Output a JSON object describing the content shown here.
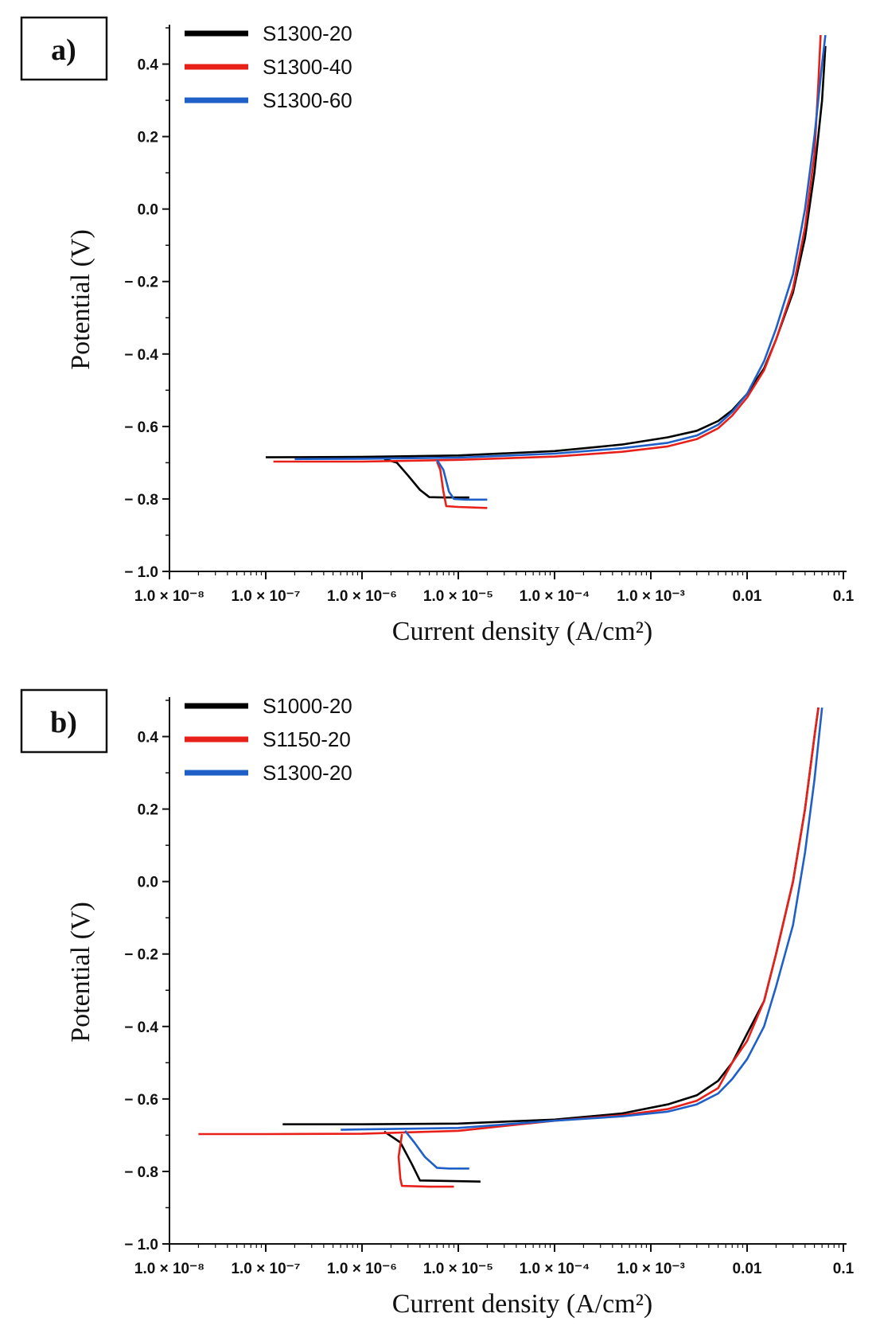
{
  "chart_data": [
    {
      "type": "line",
      "panel_label": "a)",
      "xlabel": "Current density (A/cm²)",
      "ylabel": "Potential (V)",
      "xscale": "log",
      "xlim": [
        1e-08,
        0.1
      ],
      "ylim": [
        -1.0,
        0.5
      ],
      "x_tick_values": [
        1e-08,
        1e-07,
        1e-06,
        1e-05,
        0.0001,
        0.001,
        0.01,
        0.1
      ],
      "x_tick_labels": [
        "1.0 × 10⁻⁸",
        "1.0 × 10⁻⁷",
        "1.0 × 10⁻⁶",
        "1.0 × 10⁻⁵",
        "1.0 × 10⁻⁴",
        "1.0 × 10⁻³",
        "0.01",
        "0.1"
      ],
      "y_tick_values": [
        -1.0,
        -0.8,
        -0.6,
        -0.4,
        -0.2,
        0.0,
        0.2,
        0.4
      ],
      "y_tick_labels": [
        "− 1.0",
        "− 0.8",
        "− 0.6",
        "− 0.4",
        "− 0.2",
        "0.0",
        "0.2",
        "0.4"
      ],
      "legend_position": "top-left",
      "series": [
        {
          "name": "S1300-20",
          "color": "#000000",
          "points": [
            [
              1e-07,
              -0.685
            ],
            [
              1e-06,
              -0.684
            ],
            [
              1e-05,
              -0.68
            ],
            [
              0.0001,
              -0.668
            ],
            [
              0.0005,
              -0.65
            ],
            [
              0.0015,
              -0.63
            ],
            [
              0.003,
              -0.612
            ],
            [
              0.005,
              -0.585
            ],
            [
              0.007,
              -0.555
            ],
            [
              0.01,
              -0.51
            ],
            [
              0.015,
              -0.44
            ],
            [
              0.02,
              -0.36
            ],
            [
              0.03,
              -0.23
            ],
            [
              0.04,
              -0.08
            ],
            [
              0.05,
              0.1
            ],
            [
              0.06,
              0.3
            ],
            [
              0.065,
              0.45
            ]
          ]
        },
        {
          "name": "S1300-20 cathodic",
          "color": "#000000",
          "points": [
            [
              1.7e-06,
              -0.69
            ],
            [
              2.3e-06,
              -0.7
            ],
            [
              3e-06,
              -0.735
            ],
            [
              4e-06,
              -0.775
            ],
            [
              5e-06,
              -0.795
            ],
            [
              7e-06,
              -0.796
            ],
            [
              1.3e-05,
              -0.796
            ]
          ]
        },
        {
          "name": "S1300-40",
          "color": "#e8201a",
          "points": [
            [
              1.2e-07,
              -0.697
            ],
            [
              1e-06,
              -0.697
            ],
            [
              1e-05,
              -0.692
            ],
            [
              0.0001,
              -0.683
            ],
            [
              0.0005,
              -0.67
            ],
            [
              0.0015,
              -0.655
            ],
            [
              0.003,
              -0.635
            ],
            [
              0.005,
              -0.605
            ],
            [
              0.007,
              -0.57
            ],
            [
              0.01,
              -0.52
            ],
            [
              0.015,
              -0.445
            ],
            [
              0.02,
              -0.36
            ],
            [
              0.03,
              -0.22
            ],
            [
              0.04,
              -0.05
            ],
            [
              0.05,
              0.15
            ],
            [
              0.055,
              0.35
            ],
            [
              0.058,
              0.48
            ]
          ]
        },
        {
          "name": "S1300-40 cathodic",
          "color": "#e8201a",
          "points": [
            [
              6e-06,
              -0.697
            ],
            [
              6.5e-06,
              -0.72
            ],
            [
              7e-06,
              -0.78
            ],
            [
              7.5e-06,
              -0.82
            ],
            [
              1e-05,
              -0.822
            ],
            [
              2e-05,
              -0.825
            ]
          ]
        },
        {
          "name": "S1300-60",
          "color": "#1f5fc8",
          "points": [
            [
              2e-07,
              -0.69
            ],
            [
              1e-06,
              -0.689
            ],
            [
              1e-05,
              -0.686
            ],
            [
              0.0001,
              -0.675
            ],
            [
              0.0005,
              -0.66
            ],
            [
              0.0015,
              -0.645
            ],
            [
              0.003,
              -0.625
            ],
            [
              0.005,
              -0.595
            ],
            [
              0.007,
              -0.56
            ],
            [
              0.01,
              -0.51
            ],
            [
              0.015,
              -0.42
            ],
            [
              0.02,
              -0.33
            ],
            [
              0.03,
              -0.18
            ],
            [
              0.04,
              0.0
            ],
            [
              0.05,
              0.2
            ],
            [
              0.06,
              0.4
            ],
            [
              0.065,
              0.48
            ]
          ]
        },
        {
          "name": "S1300-60 cathodic",
          "color": "#1f5fc8",
          "points": [
            [
              6e-06,
              -0.692
            ],
            [
              7e-06,
              -0.72
            ],
            [
              8e-06,
              -0.78
            ],
            [
              9e-06,
              -0.8
            ],
            [
              1.2e-05,
              -0.802
            ],
            [
              2e-05,
              -0.802
            ]
          ]
        }
      ],
      "legend": [
        {
          "name": "S1300-20",
          "color": "#000000"
        },
        {
          "name": "S1300-40",
          "color": "#e8201a"
        },
        {
          "name": "S1300-60",
          "color": "#1f5fc8"
        }
      ]
    },
    {
      "type": "line",
      "panel_label": "b)",
      "xlabel": "Current density (A/cm²)",
      "ylabel": "Potential (V)",
      "xscale": "log",
      "xlim": [
        1e-08,
        0.1
      ],
      "ylim": [
        -1.0,
        0.5
      ],
      "x_tick_values": [
        1e-08,
        1e-07,
        1e-06,
        1e-05,
        0.0001,
        0.001,
        0.01,
        0.1
      ],
      "x_tick_labels": [
        "1.0 × 10⁻⁸",
        "1.0 × 10⁻⁷",
        "1.0 × 10⁻⁶",
        "1.0 × 10⁻⁵",
        "1.0 × 10⁻⁴",
        "1.0 × 10⁻³",
        "0.01",
        "0.1"
      ],
      "y_tick_values": [
        -1.0,
        -0.8,
        -0.6,
        -0.4,
        -0.2,
        0.0,
        0.2,
        0.4
      ],
      "y_tick_labels": [
        "− 1.0",
        "− 0.8",
        "− 0.6",
        "− 0.4",
        "− 0.2",
        "0.0",
        "0.2",
        "0.4"
      ],
      "legend_position": "top-left",
      "series": [
        {
          "name": "S1000-20",
          "color": "#000000",
          "points": [
            [
              1.5e-07,
              -0.67
            ],
            [
              1e-06,
              -0.67
            ],
            [
              1e-05,
              -0.668
            ],
            [
              0.0001,
              -0.657
            ],
            [
              0.0005,
              -0.64
            ],
            [
              0.0015,
              -0.615
            ],
            [
              0.003,
              -0.59
            ],
            [
              0.005,
              -0.55
            ],
            [
              0.007,
              -0.5
            ],
            [
              0.01,
              -0.42
            ],
            [
              0.015,
              -0.33
            ],
            [
              0.02,
              -0.2
            ],
            [
              0.03,
              0.0
            ],
            [
              0.04,
              0.2
            ],
            [
              0.05,
              0.4
            ],
            [
              0.055,
              0.48
            ]
          ]
        },
        {
          "name": "S1000-20 cathodic",
          "color": "#000000",
          "points": [
            [
              1.7e-06,
              -0.69
            ],
            [
              2.5e-06,
              -0.72
            ],
            [
              3.3e-06,
              -0.78
            ],
            [
              4e-06,
              -0.825
            ],
            [
              7e-06,
              -0.826
            ],
            [
              1.7e-05,
              -0.828
            ]
          ]
        },
        {
          "name": "S1150-20",
          "color": "#e8201a",
          "points": [
            [
              2e-08,
              -0.697
            ],
            [
              1e-07,
              -0.697
            ],
            [
              1e-06,
              -0.696
            ],
            [
              1e-05,
              -0.688
            ],
            [
              0.0001,
              -0.66
            ],
            [
              0.0005,
              -0.645
            ],
            [
              0.0015,
              -0.628
            ],
            [
              0.003,
              -0.605
            ],
            [
              0.005,
              -0.57
            ],
            [
              0.007,
              -0.5
            ],
            [
              0.01,
              -0.44
            ],
            [
              0.015,
              -0.33
            ],
            [
              0.02,
              -0.2
            ],
            [
              0.03,
              0.0
            ],
            [
              0.04,
              0.2
            ],
            [
              0.05,
              0.4
            ],
            [
              0.055,
              0.48
            ]
          ]
        },
        {
          "name": "S1150-20 cathodic",
          "color": "#e8201a",
          "points": [
            [
              2.6e-06,
              -0.697
            ],
            [
              2.4e-06,
              -0.76
            ],
            [
              2.5e-06,
              -0.82
            ],
            [
              2.6e-06,
              -0.84
            ],
            [
              5e-06,
              -0.842
            ],
            [
              9e-06,
              -0.842
            ]
          ]
        },
        {
          "name": "S1300-20",
          "color": "#1f5fc8",
          "points": [
            [
              6e-07,
              -0.685
            ],
            [
              1e-06,
              -0.684
            ],
            [
              1e-05,
              -0.68
            ],
            [
              0.0001,
              -0.66
            ],
            [
              0.0005,
              -0.648
            ],
            [
              0.0015,
              -0.635
            ],
            [
              0.003,
              -0.615
            ],
            [
              0.005,
              -0.585
            ],
            [
              0.007,
              -0.545
            ],
            [
              0.01,
              -0.49
            ],
            [
              0.015,
              -0.4
            ],
            [
              0.02,
              -0.29
            ],
            [
              0.03,
              -0.12
            ],
            [
              0.04,
              0.08
            ],
            [
              0.05,
              0.28
            ],
            [
              0.06,
              0.48
            ]
          ]
        },
        {
          "name": "S1300-20 cathodic",
          "color": "#1f5fc8",
          "points": [
            [
              2.8e-06,
              -0.688
            ],
            [
              3.5e-06,
              -0.72
            ],
            [
              4.5e-06,
              -0.76
            ],
            [
              6e-06,
              -0.79
            ],
            [
              8e-06,
              -0.792
            ],
            [
              1.3e-05,
              -0.792
            ]
          ]
        }
      ],
      "legend": [
        {
          "name": "S1000-20",
          "color": "#000000"
        },
        {
          "name": "S1150-20",
          "color": "#e8201a"
        },
        {
          "name": "S1300-20",
          "color": "#1f5fc8"
        }
      ]
    }
  ]
}
